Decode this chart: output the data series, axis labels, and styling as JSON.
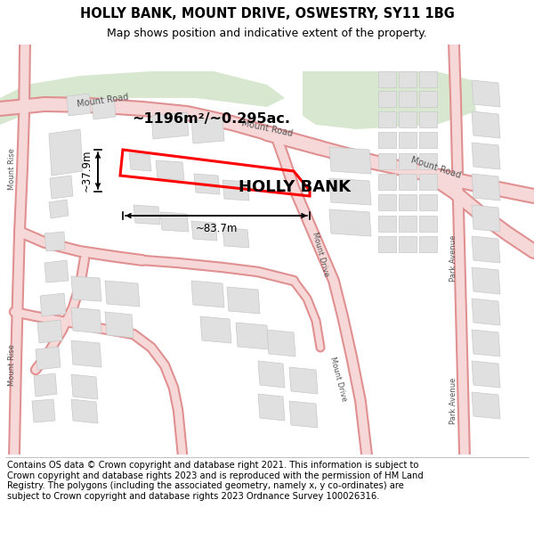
{
  "title": "HOLLY BANK, MOUNT DRIVE, OSWESTRY, SY11 1BG",
  "subtitle": "Map shows position and indicative extent of the property.",
  "property_name": "HOLLY BANK",
  "area_text": "~1196m²/~0.295ac.",
  "dim_width": "~83.7m",
  "dim_height": "~37.9m",
  "footer": "Contains OS data © Crown copyright and database right 2021. This information is subject to Crown copyright and database rights 2023 and is reproduced with the permission of HM Land Registry. The polygons (including the associated geometry, namely x, y co-ordinates) are subject to Crown copyright and database rights 2023 Ordnance Survey 100026316.",
  "map_bg": "#ffffff",
  "road_fill": "#f7d8d8",
  "road_edge": "#e08080",
  "road_line": "#e09090",
  "building_fill": "#e0e0e0",
  "building_edge": "#c8c8c8",
  "green_fill": "#d8e8d0",
  "highlight_color": "#ff0000",
  "text_color": "#555555",
  "title_fontsize": 10.5,
  "subtitle_fontsize": 9,
  "footer_fontsize": 7.2,
  "label_fontsize": 7,
  "small_label_fontsize": 6
}
